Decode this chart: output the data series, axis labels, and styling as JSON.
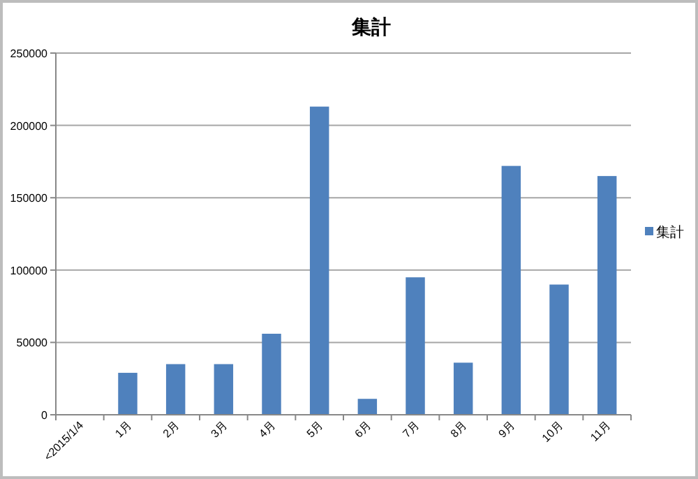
{
  "chart_data": {
    "type": "bar",
    "title": "集計",
    "categories": [
      "<2015/1/4",
      "1月",
      "2月",
      "3月",
      "4月",
      "5月",
      "6月",
      "7月",
      "8月",
      "9月",
      "10月",
      "11月"
    ],
    "series": [
      {
        "name": "集計",
        "color": "#4f81bd",
        "values": [
          0,
          29000,
          35000,
          35000,
          56000,
          213000,
          11000,
          95000,
          36000,
          172000,
          90000,
          165000
        ]
      }
    ],
    "ylim": [
      0,
      250000
    ],
    "yticks": [
      0,
      50000,
      100000,
      150000,
      200000,
      250000
    ],
    "grid": "y",
    "legend": "right"
  }
}
